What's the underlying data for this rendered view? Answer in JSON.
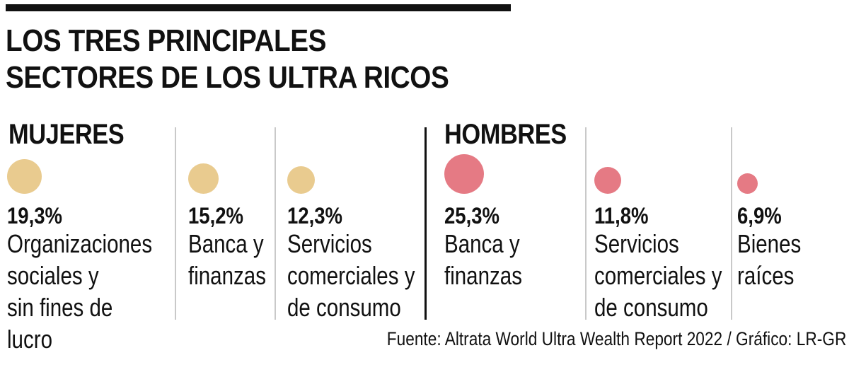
{
  "chart_data": {
    "type": "bubble",
    "title_lines": [
      "LOS TRES PRINCIPALES",
      "SECTORES DE LOS ULTRA RICOS"
    ],
    "unit": "%",
    "groups": [
      {
        "name": "MUJERES",
        "color": "#E9CB8F",
        "items": [
          {
            "value": 19.3,
            "value_label": "19,3%",
            "label": "Organizaciones\nsociales y\nsin fines de lucro"
          },
          {
            "value": 15.2,
            "value_label": "15,2%",
            "label": "Banca y\nfinanzas"
          },
          {
            "value": 12.3,
            "value_label": "12,3%",
            "label": "Servicios\ncomerciales y\nde consumo"
          }
        ]
      },
      {
        "name": "HOMBRES",
        "color": "#E57A84",
        "items": [
          {
            "value": 25.3,
            "value_label": "25,3%",
            "label": "Banca y\nfinanzas"
          },
          {
            "value": 11.8,
            "value_label": "11,8%",
            "label": "Servicios\ncomerciales y\nde consumo"
          },
          {
            "value": 6.9,
            "value_label": "6,9%",
            "label": "Bienes\nraíces"
          }
        ]
      }
    ],
    "source": "Fuente: Altrata World Ultra Wealth Report 2022 / Gráfico: LR-GR"
  }
}
